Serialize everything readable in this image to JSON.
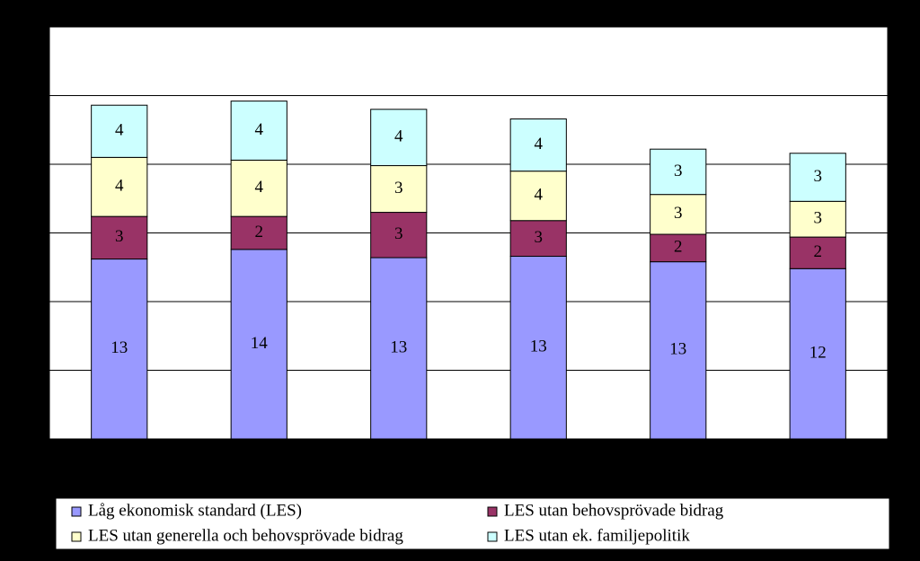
{
  "chart_data": {
    "type": "stacked_bar",
    "categories": [
      null,
      null,
      null,
      null,
      null,
      null
    ],
    "series": [
      {
        "name": "Låg ekonomisk standard (LES)",
        "color": "#9999ff",
        "values": [
          13.1,
          13.8,
          13.2,
          13.3,
          12.9,
          12.4
        ],
        "value_labels": [
          "13",
          "14",
          "13",
          "13",
          "13",
          "12"
        ]
      },
      {
        "name": "LES utan behovsprövade bidrag",
        "color": "#993366",
        "values": [
          3.1,
          2.4,
          3.3,
          2.6,
          2.0,
          2.3
        ],
        "value_labels": [
          "3",
          "2",
          "3",
          "3",
          "2",
          "2"
        ]
      },
      {
        "name": "LES utan generella och behovsprövade bidrag",
        "color": "#ffffcc",
        "values": [
          4.3,
          4.1,
          3.4,
          3.6,
          2.9,
          2.6
        ],
        "value_labels": [
          "4",
          "4",
          "3",
          "4",
          "3",
          "3"
        ]
      },
      {
        "name": "LES utan ek. familjepolitik",
        "color": "#ccffff",
        "values": [
          3.8,
          4.3,
          4.1,
          3.8,
          3.3,
          3.5
        ],
        "value_labels": [
          "4",
          "4",
          "4",
          "4",
          "3",
          "3"
        ]
      }
    ],
    "ylim": [
      0,
      30
    ],
    "yticks": [
      0,
      5,
      10,
      15,
      20,
      25,
      30
    ],
    "grid": true,
    "legend": "bottom"
  }
}
